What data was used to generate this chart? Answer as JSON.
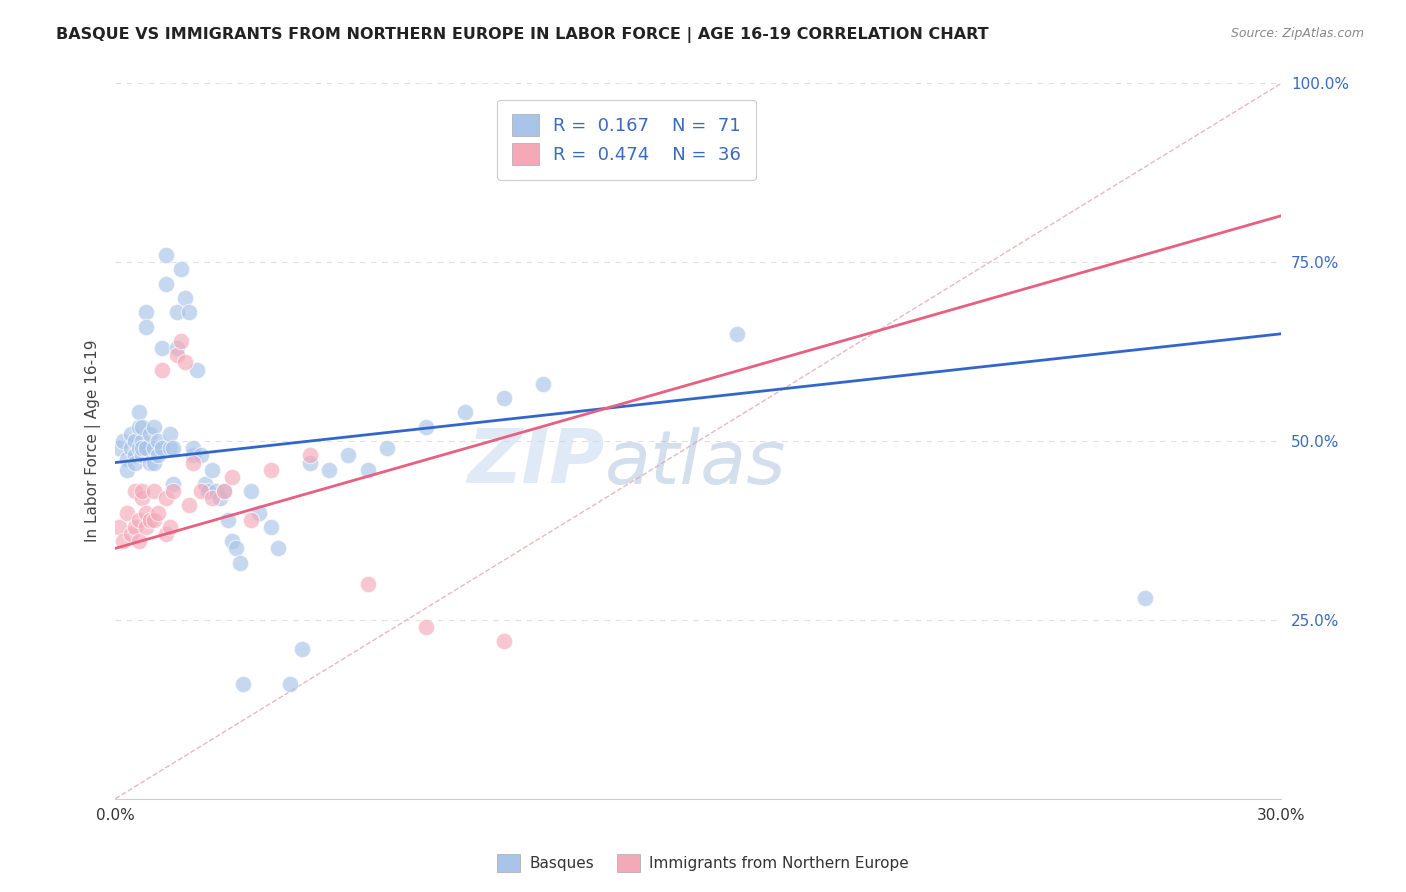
{
  "title": "BASQUE VS IMMIGRANTS FROM NORTHERN EUROPE IN LABOR FORCE | AGE 16-19 CORRELATION CHART",
  "source": "Source: ZipAtlas.com",
  "ylabel": "In Labor Force | Age 16-19",
  "xmin": 0.0,
  "xmax": 0.3,
  "ymin": 0.0,
  "ymax": 1.0,
  "blue_color": "#a8c4e8",
  "pink_color": "#f4a8b8",
  "blue_line_color": "#3366cc",
  "pink_line_color": "#e86080",
  "ref_line_color": "#e8b0b8",
  "legend_R_blue": "0.167",
  "legend_N_blue": "71",
  "legend_R_pink": "0.474",
  "legend_N_pink": "36",
  "legend_value_color": "#3a6bbf",
  "watermark_color": "#c8d8f0",
  "background_color": "#ffffff",
  "grid_color": "#e0e0e0",
  "blue_line_intercept": 0.47,
  "blue_line_slope": 0.6,
  "pink_line_intercept": 0.35,
  "pink_line_slope": 1.55,
  "blue_scatter_x": [
    0.001,
    0.002,
    0.003,
    0.003,
    0.004,
    0.004,
    0.005,
    0.005,
    0.005,
    0.006,
    0.006,
    0.006,
    0.007,
    0.007,
    0.007,
    0.007,
    0.008,
    0.008,
    0.008,
    0.009,
    0.009,
    0.01,
    0.01,
    0.01,
    0.011,
    0.011,
    0.012,
    0.012,
    0.013,
    0.013,
    0.014,
    0.014,
    0.015,
    0.015,
    0.016,
    0.016,
    0.017,
    0.018,
    0.019,
    0.02,
    0.02,
    0.021,
    0.022,
    0.023,
    0.024,
    0.025,
    0.026,
    0.027,
    0.028,
    0.029,
    0.03,
    0.031,
    0.032,
    0.033,
    0.035,
    0.037,
    0.04,
    0.042,
    0.045,
    0.048,
    0.05,
    0.055,
    0.06,
    0.065,
    0.07,
    0.08,
    0.09,
    0.1,
    0.11,
    0.16,
    0.265
  ],
  "blue_scatter_y": [
    0.49,
    0.5,
    0.475,
    0.46,
    0.49,
    0.51,
    0.48,
    0.5,
    0.47,
    0.52,
    0.54,
    0.49,
    0.48,
    0.5,
    0.52,
    0.49,
    0.68,
    0.66,
    0.49,
    0.51,
    0.47,
    0.49,
    0.47,
    0.52,
    0.48,
    0.5,
    0.63,
    0.49,
    0.72,
    0.76,
    0.49,
    0.51,
    0.49,
    0.44,
    0.68,
    0.63,
    0.74,
    0.7,
    0.68,
    0.48,
    0.49,
    0.6,
    0.48,
    0.44,
    0.43,
    0.46,
    0.43,
    0.42,
    0.43,
    0.39,
    0.36,
    0.35,
    0.33,
    0.16,
    0.43,
    0.4,
    0.38,
    0.35,
    0.16,
    0.21,
    0.47,
    0.46,
    0.48,
    0.46,
    0.49,
    0.52,
    0.54,
    0.56,
    0.58,
    0.65,
    0.28
  ],
  "pink_scatter_x": [
    0.001,
    0.002,
    0.003,
    0.004,
    0.005,
    0.005,
    0.006,
    0.006,
    0.007,
    0.007,
    0.008,
    0.008,
    0.009,
    0.01,
    0.01,
    0.011,
    0.012,
    0.013,
    0.013,
    0.014,
    0.015,
    0.016,
    0.017,
    0.018,
    0.019,
    0.02,
    0.022,
    0.025,
    0.028,
    0.03,
    0.035,
    0.04,
    0.05,
    0.065,
    0.08,
    0.1
  ],
  "pink_scatter_y": [
    0.38,
    0.36,
    0.4,
    0.37,
    0.38,
    0.43,
    0.39,
    0.36,
    0.42,
    0.43,
    0.38,
    0.4,
    0.39,
    0.43,
    0.39,
    0.4,
    0.6,
    0.37,
    0.42,
    0.38,
    0.43,
    0.62,
    0.64,
    0.61,
    0.41,
    0.47,
    0.43,
    0.42,
    0.43,
    0.45,
    0.39,
    0.46,
    0.48,
    0.3,
    0.24,
    0.22
  ]
}
